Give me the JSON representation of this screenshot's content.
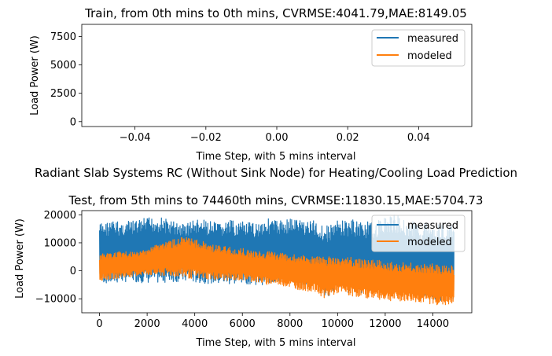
{
  "figure": {
    "suptitle": "Radiant Slab Systems RC (Without Sink Node) for Heating/Cooling Load Prediction"
  },
  "colors": {
    "measured": "#1f77b4",
    "modeled": "#ff7f0e"
  },
  "chart_data": [
    {
      "type": "line",
      "title": "Train, from 0th mins to 0th mins, CVRMSE:4041.79,MAE:8149.05",
      "xlabel": "Time Step, with 5 mins interval",
      "ylabel": "Load Power (W)",
      "xlim": [
        -0.055,
        0.055
      ],
      "ylim": [
        -430,
        8580
      ],
      "xticks": [
        -0.04,
        -0.02,
        0.0,
        0.02,
        0.04
      ],
      "xtick_labels": [
        "−0.04",
        "−0.02",
        "0.00",
        "0.02",
        "0.04"
      ],
      "yticks": [
        0,
        2500,
        5000,
        7500
      ],
      "ytick_labels": [
        "0",
        "2500",
        "5000",
        "7500"
      ],
      "legend": [
        "measured",
        "modeled"
      ],
      "legend_position": "top-right",
      "grid": false,
      "series": [
        {
          "name": "measured",
          "values": []
        },
        {
          "name": "modeled",
          "values": []
        }
      ]
    },
    {
      "type": "line",
      "title": "Test, from 5th mins to 74460th mins, CVRMSE:11830.15,MAE:5704.73",
      "xlabel": "Time Step, with 5 mins interval",
      "ylabel": "Load Power (W)",
      "xlim": [
        -745,
        15636
      ],
      "ylim": [
        -15000,
        21500
      ],
      "xticks": [
        0,
        2000,
        4000,
        6000,
        8000,
        10000,
        12000,
        14000
      ],
      "xtick_labels": [
        "0",
        "2000",
        "4000",
        "6000",
        "8000",
        "10000",
        "12000",
        "14000"
      ],
      "yticks": [
        -10000,
        0,
        10000,
        20000
      ],
      "ytick_labels": [
        "−10000",
        "0",
        "10000",
        "20000"
      ],
      "legend": [
        "measured",
        "modeled"
      ],
      "legend_position": "top-right",
      "grid": false,
      "x_range": [
        0,
        14891
      ],
      "envelope_step": 500,
      "series": [
        {
          "name": "measured",
          "upper": [
            17000,
            18000,
            17500,
            18000,
            19000,
            19500,
            18000,
            17000,
            18500,
            18000,
            17000,
            18000,
            17500,
            17000,
            19000,
            18000,
            19000,
            18500,
            18000,
            16000,
            18000,
            18500,
            18000,
            17000,
            19500,
            20000,
            18000,
            17000,
            18000,
            16000
          ],
          "lower": [
            -4000,
            -5000,
            -4000,
            -4000,
            -4500,
            -4500,
            -4000,
            -4000,
            -4500,
            -4500,
            -5000,
            -5000,
            -4500,
            -5000,
            -5000,
            -4500,
            -4000,
            -5000,
            -6000,
            -10000,
            -6000,
            -8000,
            -8000,
            -6000,
            -7000,
            -7000,
            -8000,
            -9000,
            -10000,
            -11000
          ]
        },
        {
          "name": "modeled",
          "upper": [
            6000,
            6500,
            7000,
            6500,
            8000,
            10000,
            11000,
            12000,
            11500,
            10000,
            9000,
            8500,
            8000,
            7000,
            7000,
            6500,
            6000,
            5500,
            5000,
            5000,
            5000,
            5000,
            4000,
            4000,
            3500,
            3000,
            3000,
            2500,
            2500,
            2000
          ],
          "lower": [
            -3500,
            -3000,
            -2500,
            -2000,
            -1500,
            -2000,
            -2000,
            -2500,
            -3000,
            -3000,
            -3500,
            -3500,
            -3500,
            -4000,
            -5000,
            -5000,
            -6000,
            -7000,
            -7500,
            -10000,
            -8000,
            -9000,
            -9500,
            -10000,
            -10500,
            -11000,
            -11000,
            -11500,
            -12000,
            -12500
          ]
        }
      ]
    }
  ]
}
